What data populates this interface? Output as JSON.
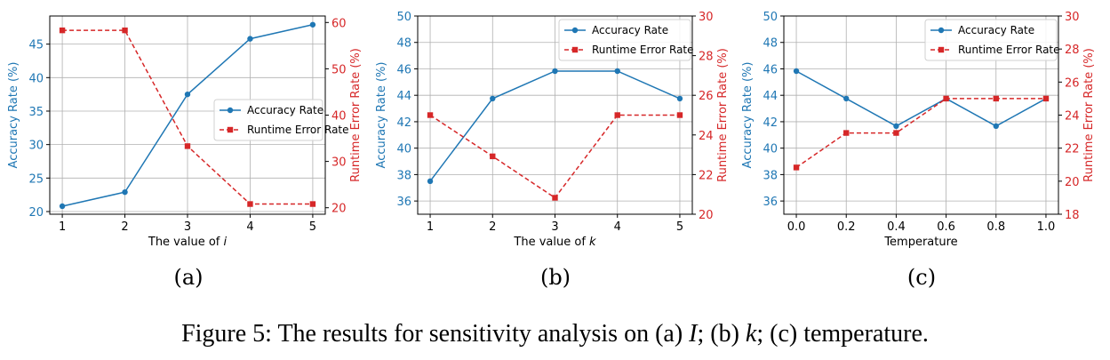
{
  "chart_data": [
    {
      "type": "line",
      "panel_label": "(a)",
      "xlabel_text": "The value of ",
      "xlabel_var": "i",
      "ylabel_left": "Accuracy Rate (%)",
      "ylabel_right": "Runtime Error Rate (%)",
      "x": [
        1,
        2,
        3,
        4,
        5
      ],
      "x_ticks": [
        "1",
        "2",
        "3",
        "4",
        "5"
      ],
      "xlim": [
        0.8,
        5.2
      ],
      "ylim_left": [
        19.6,
        49.2
      ],
      "ylim_right": [
        18.6,
        61.4
      ],
      "y_ticks_left": [
        20,
        25,
        30,
        35,
        40,
        45
      ],
      "y_ticks_right": [
        20,
        30,
        40,
        50,
        60
      ],
      "legend_position": "center-right",
      "series": [
        {
          "name": "Accuracy Rate",
          "axis": "left",
          "style": "solid",
          "marker": "circle",
          "values": [
            20.8,
            22.9,
            37.5,
            45.8,
            47.9
          ]
        },
        {
          "name": "Runtime Error Rate",
          "axis": "right",
          "style": "dashed",
          "marker": "square",
          "values": [
            58.3,
            58.3,
            33.3,
            20.8,
            20.8
          ]
        }
      ]
    },
    {
      "type": "line",
      "panel_label": "(b)",
      "xlabel_text": "The value of ",
      "xlabel_var": "k",
      "ylabel_left": "Accuracy Rate (%)",
      "ylabel_right": "Runtime Error Rate (%)",
      "x": [
        1,
        2,
        3,
        4,
        5
      ],
      "x_ticks": [
        "1",
        "2",
        "3",
        "4",
        "5"
      ],
      "xlim": [
        0.8,
        5.2
      ],
      "ylim_left": [
        35,
        50
      ],
      "ylim_right": [
        20,
        30
      ],
      "y_ticks_left": [
        36,
        38,
        40,
        42,
        44,
        46,
        48,
        50
      ],
      "y_ticks_right": [
        20,
        22,
        24,
        26,
        28,
        30
      ],
      "legend_position": "top-right",
      "series": [
        {
          "name": "Accuracy Rate",
          "axis": "left",
          "style": "solid",
          "marker": "circle",
          "values": [
            37.5,
            43.75,
            45.83,
            45.83,
            43.75
          ]
        },
        {
          "name": "Runtime Error Rate",
          "axis": "right",
          "style": "dashed",
          "marker": "square",
          "values": [
            25.0,
            22.92,
            20.83,
            25.0,
            25.0
          ]
        }
      ]
    },
    {
      "type": "line",
      "panel_label": "(c)",
      "xlabel_text": "Temperature",
      "xlabel_var": "",
      "ylabel_left": "Accuracy Rate (%)",
      "ylabel_right": "Runtime Error Rate (%)",
      "x": [
        0.0,
        0.2,
        0.4,
        0.6,
        0.8,
        1.0
      ],
      "x_ticks": [
        "0.0",
        "0.2",
        "0.4",
        "0.6",
        "0.8",
        "1.0"
      ],
      "xlim": [
        -0.05,
        1.05
      ],
      "ylim_left": [
        35,
        50
      ],
      "ylim_right": [
        18,
        30
      ],
      "y_ticks_left": [
        36,
        38,
        40,
        42,
        44,
        46,
        48,
        50
      ],
      "y_ticks_right": [
        18,
        20,
        22,
        24,
        26,
        28,
        30
      ],
      "legend_position": "top-right",
      "series": [
        {
          "name": "Accuracy Rate",
          "axis": "left",
          "style": "solid",
          "marker": "circle",
          "values": [
            45.83,
            43.75,
            41.67,
            43.75,
            41.67,
            43.75
          ]
        },
        {
          "name": "Runtime Error Rate",
          "axis": "right",
          "style": "dashed",
          "marker": "square",
          "values": [
            20.83,
            22.92,
            22.92,
            25.0,
            25.0,
            25.0
          ]
        }
      ]
    }
  ],
  "caption": {
    "prefix": "Figure 5: The results for sensitivity analysis on (a) ",
    "var_a": "I",
    "mid1": "; (b) ",
    "var_b": "k",
    "mid2": "; (c) temperature."
  },
  "colors": {
    "accuracy": "#1f77b4",
    "error": "#d62728",
    "grid": "#b0b0b0",
    "axis": "#000000"
  }
}
